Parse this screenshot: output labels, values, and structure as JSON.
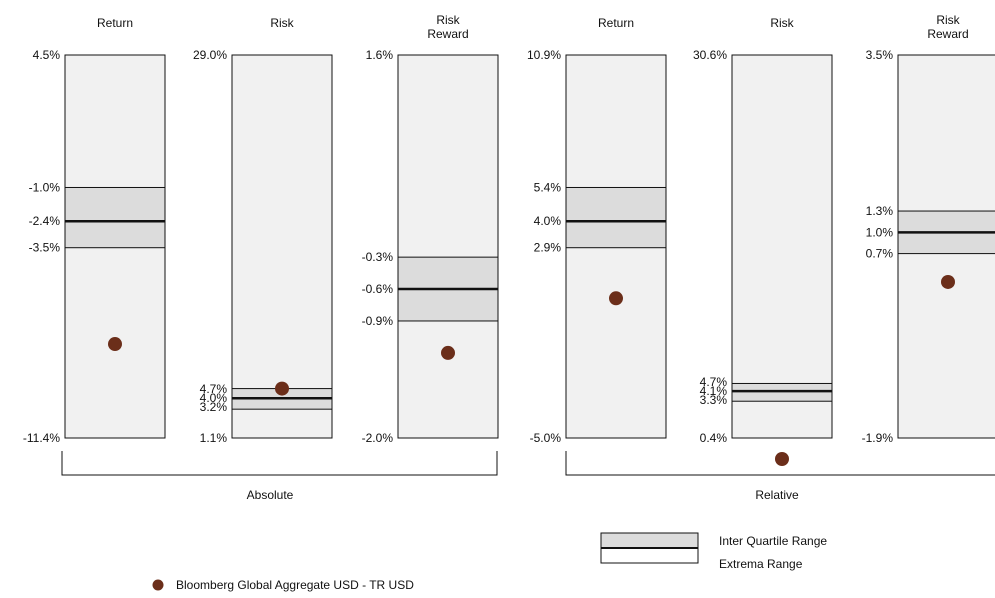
{
  "chart_data": {
    "type": "range-box",
    "groups": [
      {
        "label": "Absolute",
        "panels": [
          {
            "title_lines": [
              "Return"
            ],
            "min": -11.4,
            "max": 4.5,
            "q1": -3.5,
            "median": -2.4,
            "q3": -1.0,
            "point": -7.5,
            "labels": {
              "max": "4.5%",
              "min": "-11.4%",
              "q1": "-3.5%",
              "median": "-2.4%",
              "q3": "-1.0%"
            }
          },
          {
            "title_lines": [
              "Risk"
            ],
            "min": 1.1,
            "max": 29.0,
            "q1": 3.2,
            "median": 4.0,
            "q3": 4.7,
            "point": 4.7,
            "labels": {
              "max": "29.0%",
              "min": "1.1%",
              "q1": "3.2%",
              "median": "4.0%",
              "q3": "4.7%"
            }
          },
          {
            "title_lines": [
              "Risk",
              "Reward"
            ],
            "min": -2.0,
            "max": 1.6,
            "q1": -0.9,
            "median": -0.6,
            "q3": -0.3,
            "point": -1.2,
            "labels": {
              "max": "1.6%",
              "min": "-2.0%",
              "q1": "-0.9%",
              "median": "-0.6%",
              "q3": "-0.3%"
            }
          }
        ]
      },
      {
        "label": "Relative",
        "panels": [
          {
            "title_lines": [
              "Return"
            ],
            "min": -5.0,
            "max": 10.9,
            "q1": 2.9,
            "median": 4.0,
            "q3": 5.4,
            "point": 0.8,
            "labels": {
              "max": "10.9%",
              "min": "-5.0%",
              "q1": "2.9%",
              "median": "4.0%",
              "q3": "5.4%"
            }
          },
          {
            "title_lines": [
              "Risk"
            ],
            "min": 0.4,
            "max": 30.6,
            "q1": 3.3,
            "median": 4.1,
            "q3": 4.7,
            "point": -1.2,
            "labels": {
              "max": "30.6%",
              "min": "0.4%",
              "q1": "3.3%",
              "median": "4.1%",
              "q3": "4.7%"
            }
          },
          {
            "title_lines": [
              "Risk",
              "Reward"
            ],
            "min": -1.9,
            "max": 3.5,
            "q1": 0.7,
            "median": 1.0,
            "q3": 1.3,
            "point": 0.3,
            "labels": {
              "max": "3.5%",
              "min": "-1.9%",
              "q1": "0.7%",
              "median": "1.0%",
              "q3": "1.3%"
            }
          }
        ]
      }
    ],
    "legend": {
      "iqr_label": "Inter Quartile Range",
      "extrema_label": "Extrema Range",
      "point_label": "Bloomberg Global Aggregate USD - TR USD"
    },
    "colors": {
      "box_fill": "#f1f1f1",
      "iqr_fill": "#dcdcdc",
      "line": "#111111",
      "point": "#6b2e1a"
    }
  }
}
